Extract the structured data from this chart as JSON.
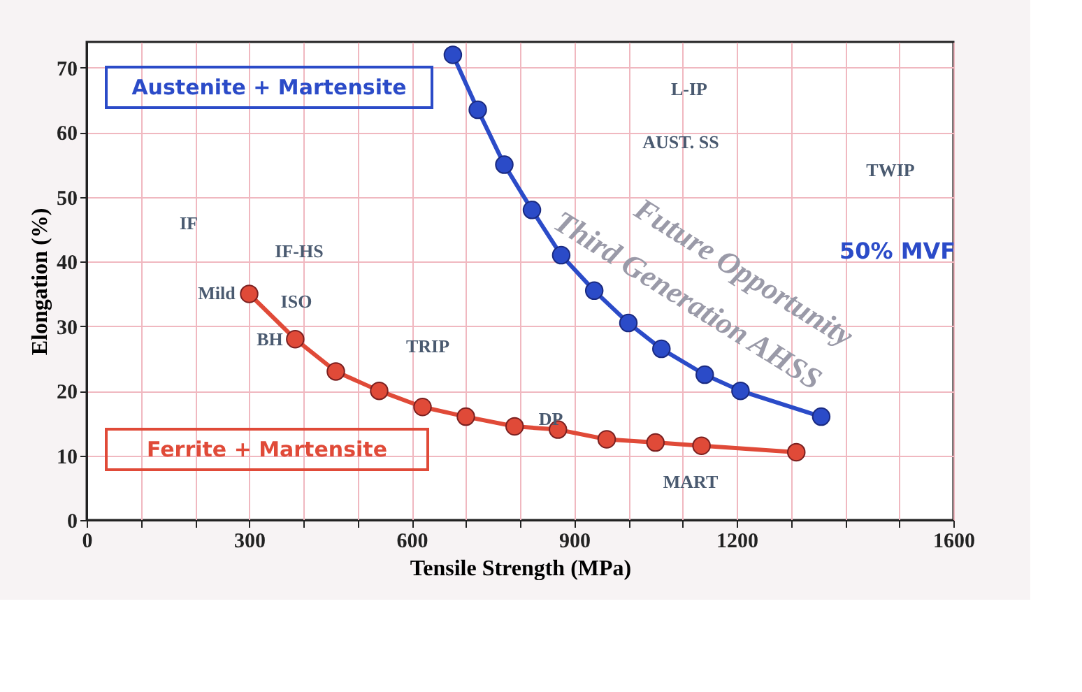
{
  "chart_data": {
    "type": "line",
    "xlabel": "Tensile Strength (MPa)",
    "ylabel": "Elongation (%)",
    "xlim": [
      0,
      1600
    ],
    "ylim": [
      0,
      74
    ],
    "xticks": [
      0,
      {
        "value": 100,
        "label": null
      },
      {
        "value": 200,
        "label": null
      },
      300,
      {
        "value": 400,
        "label": null
      },
      {
        "value": 500,
        "label": null
      },
      600,
      {
        "value": 700,
        "label": null
      },
      {
        "value": 800,
        "label": null
      },
      900,
      {
        "value": 1000,
        "label": null
      },
      {
        "value": 1100,
        "label": null
      },
      1200,
      {
        "value": 1300,
        "label": null
      },
      {
        "value": 1400,
        "label": null
      },
      {
        "value": 1500,
        "label": null
      },
      1600
    ],
    "yticks": [
      0,
      10,
      20,
      30,
      40,
      50,
      60,
      70
    ],
    "grid": true,
    "marker": "circle",
    "line_style": "solid",
    "series": [
      {
        "name": "Austenite + Martensite",
        "color": "#2b4bc8",
        "x": [
          676,
          722,
          771,
          822,
          876,
          937,
          1000,
          1061,
          1141,
          1207,
          1356
        ],
        "values": [
          72,
          63.5,
          55,
          48,
          41,
          35.5,
          30.5,
          26.5,
          22.5,
          20,
          16
        ]
      },
      {
        "name": "Ferrite + Martensite",
        "color": "#e04a38",
        "x": [
          300,
          385,
          460,
          540,
          620,
          700,
          790,
          870,
          960,
          1050,
          1135,
          1310
        ],
        "values": [
          35,
          28,
          23,
          20,
          17.5,
          16,
          14.5,
          14,
          12.5,
          12,
          11.5,
          10.5
        ]
      }
    ],
    "annotations": [
      "IF",
      "IF-HS",
      "Mild",
      "ISO",
      "BH",
      "TRIP",
      "DP",
      "MART",
      "L-IP",
      "AUST. SS",
      "TWIP",
      "50% MVF",
      "Future Opportunity",
      "Third Generation AHSS"
    ]
  }
}
